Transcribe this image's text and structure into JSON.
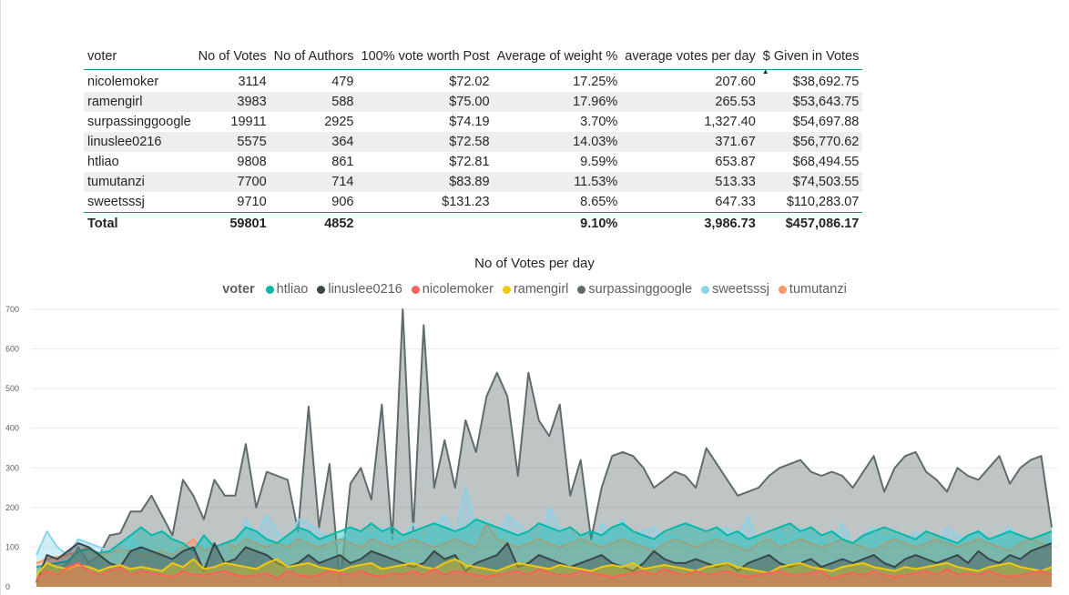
{
  "table": {
    "columns": [
      "voter",
      "No of Votes",
      "No of Authors",
      "100% vote worth Post",
      "Average of weight %",
      "average votes per day",
      "$ Given in Votes"
    ],
    "rows": [
      [
        "nicolemoker",
        "3114",
        "479",
        "$72.02",
        "17.25%",
        "207.60",
        "$38,692.75"
      ],
      [
        "ramengirl",
        "3983",
        "588",
        "$75.00",
        "17.96%",
        "265.53",
        "$53,643.75"
      ],
      [
        "surpassinggoogle",
        "19911",
        "2925",
        "$74.19",
        "3.70%",
        "1,327.40",
        "$54,697.88"
      ],
      [
        "linuslee0216",
        "5575",
        "364",
        "$72.58",
        "14.03%",
        "371.67",
        "$56,770.62"
      ],
      [
        "htliao",
        "9808",
        "861",
        "$72.81",
        "9.59%",
        "653.87",
        "$68,494.55"
      ],
      [
        "tumutanzi",
        "7700",
        "714",
        "$83.89",
        "11.53%",
        "513.33",
        "$74,503.55"
      ],
      [
        "sweetsssj",
        "9710",
        "906",
        "$131.23",
        "8.65%",
        "647.33",
        "$110,283.07"
      ]
    ],
    "total": [
      "Total",
      "59801",
      "4852",
      "",
      "9.10%",
      "3,986.73",
      "$457,086.17"
    ],
    "sort_column": "$ Given in Votes",
    "sort_direction": "ascending"
  },
  "chart_data": {
    "type": "area",
    "title": "No of Votes per day",
    "legend_title": "voter",
    "legend_position": "top-center",
    "ylim": [
      0,
      700
    ],
    "yticks": [
      0,
      100,
      200,
      300,
      400,
      500,
      600,
      700
    ],
    "grid": true,
    "x_note": "days (no x-axis labels shown)",
    "series": [
      {
        "name": "htliao",
        "color": "#01B8AA",
        "values": [
          50,
          55,
          60,
          65,
          90,
          95,
          85,
          90,
          110,
          130,
          150,
          130,
          140,
          120,
          110,
          90,
          130,
          100,
          110,
          120,
          150,
          140,
          120,
          110,
          130,
          150,
          140,
          120,
          130,
          140,
          150,
          140,
          160,
          140,
          150,
          130,
          140,
          150,
          160,
          150,
          140,
          150,
          170,
          160,
          150,
          140,
          130,
          140,
          160,
          150,
          140,
          150,
          130,
          140,
          130,
          150,
          160,
          140,
          130,
          120,
          140,
          150,
          160,
          150,
          140,
          150,
          130,
          140,
          120,
          130,
          140,
          150,
          160,
          140,
          150,
          130,
          140,
          120,
          110,
          130,
          140,
          150,
          140,
          130,
          120,
          140,
          130,
          120,
          110,
          130,
          140,
          120,
          130,
          140,
          130,
          120,
          130,
          140
        ]
      },
      {
        "name": "linuslee0216",
        "color": "#374649",
        "values": [
          10,
          80,
          70,
          90,
          110,
          100,
          80,
          60,
          50,
          90,
          100,
          90,
          80,
          70,
          90,
          100,
          40,
          110,
          60,
          70,
          100,
          90,
          80,
          60,
          50,
          60,
          80,
          60,
          70,
          80,
          60,
          70,
          90,
          80,
          70,
          60,
          50,
          60,
          90,
          70,
          80,
          40,
          60,
          70,
          80,
          110,
          50,
          60,
          80,
          70,
          60,
          50,
          60,
          70,
          80,
          60,
          50,
          40,
          60,
          90,
          70,
          60,
          60,
          70,
          60,
          50,
          60,
          40,
          60,
          70,
          80,
          60,
          50,
          60,
          70,
          50,
          60,
          70,
          60,
          70,
          80,
          60,
          50,
          70,
          80,
          70,
          60,
          70,
          80,
          60,
          90,
          70,
          60,
          80,
          70,
          90,
          100,
          110
        ]
      },
      {
        "name": "nicolemoker",
        "color": "#FD625E",
        "values": [
          20,
          40,
          30,
          50,
          60,
          40,
          30,
          40,
          50,
          30,
          40,
          35,
          30,
          25,
          40,
          30,
          30,
          35,
          40,
          30,
          25,
          30,
          35,
          20,
          40,
          30,
          25,
          30,
          40,
          35,
          30,
          40,
          30,
          25,
          35,
          30,
          40,
          30,
          45,
          30,
          40,
          35,
          30,
          25,
          30,
          35,
          40,
          30,
          45,
          35,
          30,
          30,
          40,
          35,
          30,
          25,
          30,
          35,
          40,
          30,
          45,
          35,
          30,
          40,
          30,
          35,
          40,
          30,
          25,
          30,
          35,
          40,
          30,
          30,
          35,
          40,
          20,
          30,
          35,
          30,
          40,
          30,
          25,
          30,
          35,
          40,
          30,
          45,
          30,
          35,
          30,
          40,
          30,
          25,
          30,
          35,
          40,
          30
        ]
      },
      {
        "name": "ramengirl",
        "color": "#F2C80F",
        "values": [
          30,
          60,
          50,
          45,
          55,
          50,
          40,
          50,
          55,
          45,
          50,
          45,
          40,
          60,
          50,
          70,
          45,
          50,
          60,
          55,
          50,
          45,
          60,
          70,
          50,
          55,
          60,
          50,
          45,
          40,
          50,
          55,
          60,
          45,
          50,
          55,
          60,
          50,
          45,
          60,
          70,
          55,
          50,
          45,
          40,
          50,
          60,
          55,
          50,
          45,
          55,
          50,
          45,
          40,
          50,
          55,
          50,
          60,
          45,
          50,
          55,
          50,
          45,
          40,
          50,
          55,
          60,
          50,
          45,
          40,
          35,
          50,
          55,
          60,
          50,
          45,
          40,
          50,
          55,
          60,
          50,
          45,
          40,
          50,
          45,
          50,
          55,
          60,
          50,
          45,
          40,
          50,
          55,
          60,
          50,
          45,
          40,
          50
        ]
      },
      {
        "name": "surpassinggoogle",
        "color": "#5F6B6D",
        "values": [
          15,
          55,
          40,
          60,
          100,
          60,
          80,
          130,
          135,
          190,
          190,
          230,
          180,
          130,
          270,
          230,
          170,
          270,
          230,
          230,
          360,
          200,
          290,
          280,
          270,
          140,
          455,
          150,
          310,
          5,
          260,
          300,
          220,
          460,
          120,
          700,
          140,
          660,
          250,
          370,
          250,
          420,
          340,
          480,
          540,
          480,
          280,
          540,
          420,
          380,
          460,
          230,
          320,
          120,
          250,
          330,
          340,
          330,
          300,
          250,
          270,
          290,
          280,
          250,
          350,
          310,
          270,
          230,
          240,
          250,
          280,
          300,
          310,
          320,
          290,
          280,
          290,
          280,
          250,
          290,
          330,
          240,
          300,
          330,
          340,
          290,
          270,
          240,
          300,
          280,
          270,
          300,
          330,
          260,
          300,
          320,
          330,
          150
        ]
      },
      {
        "name": "sweetsssj",
        "color": "#8AD4EB",
        "values": [
          80,
          140,
          100,
          80,
          120,
          110,
          100,
          90,
          80,
          130,
          100,
          80,
          60,
          90,
          100,
          80,
          120,
          60,
          110,
          60,
          170,
          130,
          180,
          140,
          110,
          170,
          160,
          140,
          120,
          110,
          150,
          140,
          130,
          150,
          130,
          120,
          160,
          110,
          150,
          180,
          130,
          250,
          150,
          170,
          120,
          180,
          160,
          130,
          100,
          200,
          150,
          130,
          110,
          90,
          160,
          130,
          170,
          120,
          140,
          150,
          120,
          130,
          100,
          90,
          110,
          130,
          150,
          120,
          180,
          100,
          120,
          140,
          110,
          150,
          130,
          120,
          100,
          160,
          110,
          130,
          150,
          120,
          130,
          110,
          140,
          120,
          100,
          150,
          130,
          120,
          140,
          110,
          130,
          150,
          120,
          110,
          100,
          120
        ]
      },
      {
        "name": "tumutanzi",
        "color": "#FE9666",
        "values": [
          60,
          70,
          75,
          80,
          90,
          100,
          80,
          85,
          95,
          90,
          80,
          85,
          90,
          80,
          100,
          120,
          90,
          100,
          110,
          100,
          120,
          110,
          100,
          110,
          100,
          120,
          110,
          100,
          110,
          120,
          110,
          100,
          120,
          110,
          100,
          110,
          120,
          110,
          100,
          110,
          120,
          110,
          100,
          160,
          120,
          110,
          100,
          110,
          120,
          110,
          100,
          110,
          120,
          110,
          100,
          110,
          120,
          110,
          100,
          90,
          110,
          120,
          110,
          100,
          110,
          120,
          110,
          100,
          90,
          110,
          120,
          100,
          110,
          120,
          110,
          100,
          110,
          120,
          110,
          100,
          90,
          110,
          120,
          110,
          100,
          110,
          120,
          110,
          100,
          110,
          120,
          110,
          100,
          90,
          110,
          120,
          110,
          100
        ]
      }
    ]
  }
}
